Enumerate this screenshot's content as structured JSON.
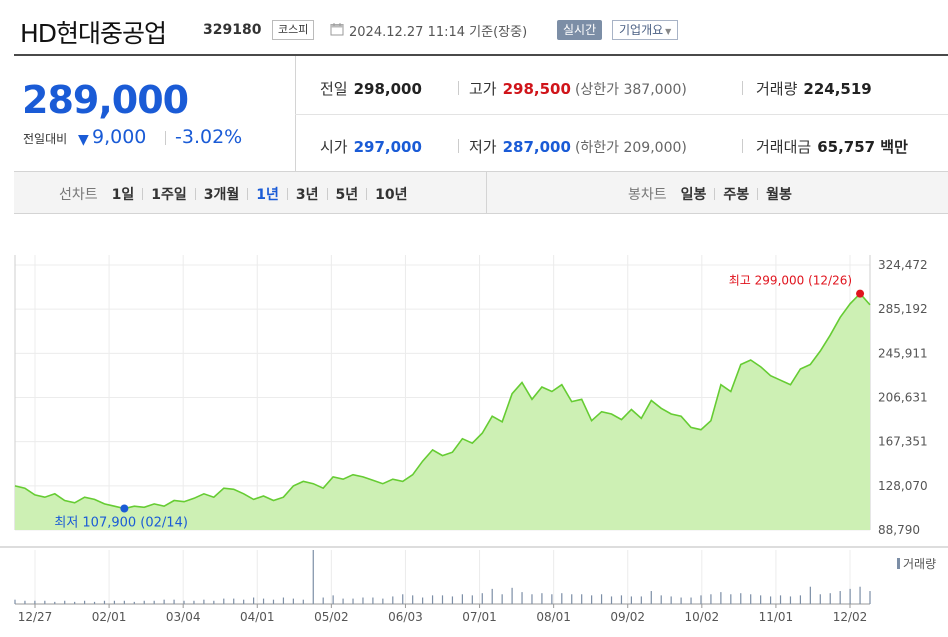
{
  "header": {
    "title": "HD현대중공업",
    "code": "329180",
    "market": "코스피",
    "calendar_icon": "calendar-icon",
    "datetime": "2024.12.27 11:14 기준(장중)",
    "realtime": "실시간",
    "overview": "기업개요",
    "overview_arrow": "▼"
  },
  "quote": {
    "price": "289,000",
    "change_label": "전일대비",
    "change_arrow": "▼",
    "change_value": "9,000",
    "change_rate": "-3.02%",
    "prev_close_label": "전일",
    "prev_close": "298,000",
    "high_label": "고가",
    "high": "298,500",
    "upper_limit_label": "(상한가 387,000)",
    "volume_label": "거래량",
    "volume": "224,519",
    "open_label": "시가",
    "open": "297,000",
    "low_label": "저가",
    "low": "287,000",
    "lower_limit_label": "(하한가 209,000)",
    "trade_value_label": "거래대금",
    "trade_value": "65,757 백만"
  },
  "tabs": {
    "line_label": "선차트",
    "line_periods": [
      "1일",
      "1주일",
      "3개월",
      "1년",
      "3년",
      "5년",
      "10년"
    ],
    "line_active": "1년",
    "candle_label": "봉차트",
    "candle_periods": [
      "일봉",
      "주봉",
      "월봉"
    ]
  },
  "chart_data": {
    "type": "area",
    "y_ticks": [
      "324,472",
      "285,192",
      "245,911",
      "206,631",
      "167,351",
      "128,070",
      "88,790"
    ],
    "ylim": [
      88790,
      324472
    ],
    "x_ticks": [
      "12/27",
      "02/01",
      "03/04",
      "04/01",
      "05/02",
      "06/03",
      "07/01",
      "08/01",
      "09/02",
      "10/02",
      "11/01",
      "12/02"
    ],
    "high_annotation": "최고 299,000 (12/26)",
    "low_annotation": "최저 107,900 (02/14)",
    "high_value": 299000,
    "low_value": 107900,
    "volume_legend": "거래량",
    "colors": {
      "line": "#66cc33",
      "fill": "#cdf0b4",
      "high": "#e0141e",
      "low": "#1a5bd6",
      "volume": "#7c8ea6"
    },
    "series": [
      {
        "values": [
          128000,
          126000,
          120000,
          118000,
          121000,
          115000,
          113000,
          118000,
          116000,
          112000,
          110000,
          107900,
          110000,
          109000,
          112000,
          110000,
          115000,
          114000,
          117000,
          121000,
          118000,
          126000,
          125000,
          121000,
          116000,
          119000,
          115000,
          118000,
          128000,
          132000,
          130000,
          126000,
          136000,
          134000,
          138000,
          136000,
          133000,
          130000,
          134000,
          132000,
          138000,
          150000,
          160000,
          155000,
          158000,
          170000,
          166000,
          175000,
          190000,
          185000,
          210000,
          220000,
          205000,
          216000,
          212000,
          218000,
          203000,
          205000,
          186000,
          194000,
          192000,
          187000,
          196000,
          188000,
          204000,
          197000,
          192000,
          190000,
          180000,
          178000,
          186000,
          218000,
          212000,
          236000,
          240000,
          234000,
          226000,
          222000,
          218000,
          232000,
          236000,
          248000,
          262000,
          278000,
          290000,
          299000,
          289000
        ]
      }
    ],
    "volume_values": [
      4,
      3,
      3,
      3,
      2,
      3,
      2,
      3,
      2,
      3,
      3,
      3,
      2,
      3,
      3,
      4,
      4,
      3,
      3,
      4,
      3,
      5,
      5,
      4,
      6,
      5,
      4,
      6,
      5,
      4,
      50,
      6,
      8,
      5,
      5,
      6,
      6,
      5,
      7,
      9,
      8,
      6,
      8,
      8,
      7,
      9,
      8,
      10,
      14,
      9,
      15,
      11,
      9,
      10,
      9,
      10,
      9,
      9,
      8,
      9,
      7,
      8,
      7,
      7,
      12,
      8,
      7,
      6,
      6,
      8,
      9,
      11,
      9,
      10,
      9,
      8,
      7,
      8,
      7,
      8,
      16,
      9,
      10,
      12,
      14,
      16,
      12
    ]
  }
}
